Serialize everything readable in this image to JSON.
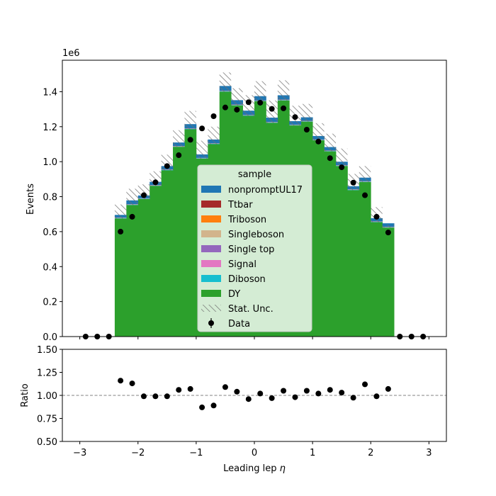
{
  "chart_data": [
    {
      "type": "bar",
      "panel": "main",
      "ylabel": "Events",
      "y_multiplier": "1e6",
      "xlim": [
        -3.3,
        3.3
      ],
      "ylim": [
        0,
        1.58
      ],
      "yticks": [
        0.0,
        0.2,
        0.4,
        0.6,
        0.8,
        1.0,
        1.2,
        1.4
      ],
      "ytick_labels": [
        "0.0",
        "0.2",
        "0.4",
        "0.6",
        "0.8",
        "1.0",
        "1.2",
        "1.4"
      ],
      "bin_edges": [
        -2.4,
        -2.2,
        -2.0,
        -1.8,
        -1.6,
        -1.4,
        -1.2,
        -1.0,
        -0.8,
        -0.6,
        -0.4,
        -0.2,
        0.0,
        0.2,
        0.4,
        0.6,
        0.8,
        1.0,
        1.2,
        1.4,
        1.6,
        1.8,
        2.0,
        2.2,
        2.4
      ],
      "series": [
        {
          "name": "DY",
          "color": "#2ca02c",
          "stacked": true,
          "values": [
            0.675,
            0.752,
            0.786,
            0.862,
            0.95,
            1.085,
            1.185,
            1.017,
            1.1,
            1.4,
            1.322,
            1.262,
            1.345,
            1.222,
            1.35,
            1.207,
            1.229,
            1.122,
            1.059,
            0.975,
            0.837,
            0.884,
            0.654,
            0.623
          ]
        },
        {
          "name": "Diboson",
          "color": "#17becf",
          "stacked": true,
          "values": [
            0.002,
            0.002,
            0.002,
            0.002,
            0.002,
            0.002,
            0.002,
            0.002,
            0.002,
            0.002,
            0.002,
            0.002,
            0.002,
            0.002,
            0.002,
            0.002,
            0.002,
            0.002,
            0.002,
            0.002,
            0.002,
            0.002,
            0.002,
            0.002
          ]
        },
        {
          "name": "Signal",
          "color": "#e377c2",
          "stacked": true,
          "values": [
            0.0005,
            0.0005,
            0.0005,
            0.0005,
            0.0005,
            0.0005,
            0.0005,
            0.0005,
            0.0005,
            0.0005,
            0.0005,
            0.0005,
            0.0005,
            0.0005,
            0.0005,
            0.0005,
            0.0005,
            0.0005,
            0.0005,
            0.0005,
            0.0005,
            0.0005,
            0.0005,
            0.0005
          ]
        },
        {
          "name": "Single top",
          "color": "#9467bd",
          "stacked": true,
          "values": [
            0.0005,
            0.0005,
            0.0005,
            0.0005,
            0.0005,
            0.0005,
            0.0005,
            0.0005,
            0.0005,
            0.0005,
            0.0005,
            0.0005,
            0.0005,
            0.0005,
            0.0005,
            0.0005,
            0.0005,
            0.0005,
            0.0005,
            0.0005,
            0.0005,
            0.0005,
            0.0005,
            0.0005
          ]
        },
        {
          "name": "Singleboson",
          "color": "#d2b48c",
          "stacked": true,
          "values": [
            0.0005,
            0.0005,
            0.0005,
            0.0005,
            0.0005,
            0.0005,
            0.0005,
            0.0005,
            0.0005,
            0.0005,
            0.0005,
            0.0005,
            0.0005,
            0.0005,
            0.0005,
            0.0005,
            0.0005,
            0.0005,
            0.0005,
            0.0005,
            0.0005,
            0.0005,
            0.0005,
            0.0005
          ]
        },
        {
          "name": "Triboson",
          "color": "#ff7f0e",
          "stacked": true,
          "values": [
            0.0002,
            0.0002,
            0.0002,
            0.0002,
            0.0002,
            0.0002,
            0.0002,
            0.0002,
            0.0002,
            0.0002,
            0.0002,
            0.0002,
            0.0002,
            0.0002,
            0.0002,
            0.0002,
            0.0002,
            0.0002,
            0.0002,
            0.0002,
            0.0002,
            0.0002,
            0.0002,
            0.0002
          ]
        },
        {
          "name": "Ttbar",
          "color": "#a52a2a",
          "stacked": true,
          "values": [
            0.001,
            0.001,
            0.001,
            0.001,
            0.001,
            0.001,
            0.001,
            0.001,
            0.001,
            0.001,
            0.001,
            0.001,
            0.001,
            0.001,
            0.001,
            0.001,
            0.001,
            0.001,
            0.001,
            0.001,
            0.001,
            0.001,
            0.001,
            0.001
          ]
        },
        {
          "name": "nonpromptUL17",
          "color": "#1f77b4",
          "stacked": true,
          "values": [
            0.016,
            0.022,
            0.016,
            0.018,
            0.02,
            0.02,
            0.025,
            0.02,
            0.022,
            0.028,
            0.025,
            0.025,
            0.025,
            0.025,
            0.025,
            0.02,
            0.02,
            0.02,
            0.02,
            0.02,
            0.018,
            0.02,
            0.018,
            0.02
          ]
        }
      ],
      "stat_unc": {
        "name": "Stat. Unc.",
        "upper": [
          0.755,
          0.845,
          0.87,
          0.945,
          1.04,
          1.18,
          1.29,
          1.12,
          1.2,
          1.51,
          1.42,
          1.38,
          1.46,
          1.35,
          1.465,
          1.32,
          1.33,
          1.22,
          1.16,
          1.075,
          0.93,
          0.975,
          0.74,
          0.64
        ],
        "lower": [
          0.675,
          0.752,
          0.786,
          0.862,
          0.95,
          1.085,
          1.185,
          1.017,
          1.1,
          1.4,
          1.322,
          1.262,
          1.345,
          1.222,
          1.35,
          1.207,
          1.229,
          1.122,
          1.059,
          0.975,
          0.837,
          0.884,
          0.654,
          0.623
        ]
      },
      "data_points": {
        "name": "Data",
        "x": [
          -2.9,
          -2.7,
          -2.5,
          -2.3,
          -2.1,
          -1.9,
          -1.7,
          -1.5,
          -1.3,
          -1.1,
          -0.9,
          -0.7,
          -0.5,
          -0.3,
          -0.1,
          0.1,
          0.3,
          0.5,
          0.7,
          0.9,
          1.1,
          1.3,
          1.5,
          1.7,
          1.9,
          2.1,
          2.3,
          2.5,
          2.7,
          2.9
        ],
        "y": [
          0.0,
          0.0,
          0.0,
          0.6,
          0.685,
          0.808,
          0.882,
          0.975,
          1.037,
          1.125,
          1.19,
          1.26,
          1.31,
          1.297,
          1.34,
          1.337,
          1.302,
          1.305,
          1.255,
          1.183,
          1.115,
          1.02,
          0.968,
          0.88,
          0.808,
          0.685,
          0.595,
          0.0,
          0.0,
          0.0
        ]
      },
      "legend": {
        "title": "sample",
        "placement": "lower center",
        "entries": [
          "nonpromptUL17",
          "Ttbar",
          "Triboson",
          "Singleboson",
          "Single top",
          "Signal",
          "Diboson",
          "DY",
          "Stat. Unc.",
          "Data"
        ]
      }
    },
    {
      "type": "scatter",
      "panel": "ratio",
      "ylabel": "Ratio",
      "xlabel": "Leading lep $\\eta$",
      "xlim": [
        -3.3,
        3.3
      ],
      "ylim": [
        0.5,
        1.5
      ],
      "yticks": [
        0.5,
        0.75,
        1.0,
        1.25,
        1.5
      ],
      "ytick_labels": [
        "0.50",
        "0.75",
        "1.00",
        "1.25",
        "1.50"
      ],
      "xticks": [
        -3,
        -2,
        -1,
        0,
        1,
        2,
        3
      ],
      "xtick_labels": [
        "−3",
        "−2",
        "−1",
        "0",
        "1",
        "2",
        "3"
      ],
      "reference_line": 1.0,
      "x": [
        -2.3,
        -2.1,
        -1.9,
        -1.7,
        -1.5,
        -1.3,
        -1.1,
        -0.9,
        -0.7,
        -0.5,
        -0.3,
        -0.1,
        0.1,
        0.3,
        0.5,
        0.7,
        0.9,
        1.1,
        1.3,
        1.5,
        1.7,
        1.9,
        2.1,
        2.3
      ],
      "y": [
        1.16,
        1.13,
        0.99,
        0.99,
        0.99,
        1.06,
        1.07,
        0.87,
        0.89,
        1.09,
        1.04,
        0.96,
        1.02,
        0.97,
        1.05,
        0.98,
        1.05,
        1.02,
        1.06,
        1.03,
        0.975,
        1.12,
        0.99,
        1.07
      ]
    }
  ],
  "x_axis_label_text": "Leading lep",
  "x_axis_label_symbol": "η"
}
